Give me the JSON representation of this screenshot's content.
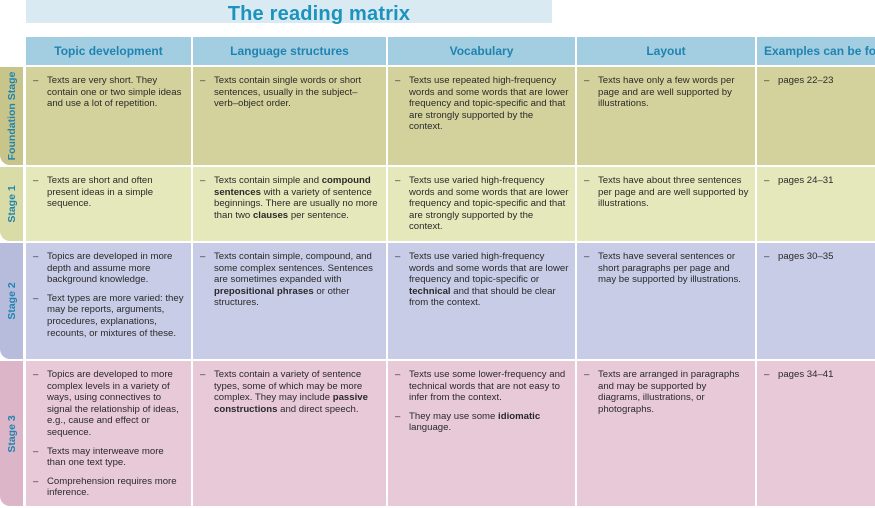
{
  "title": "The reading matrix",
  "columns": [
    "Topic development",
    "Language structures",
    "Vocabulary",
    "Layout",
    "Examples can be found"
  ],
  "colors": {
    "header_bg": "#a3cde0",
    "header_text": "#1f84b0",
    "title": "#1b93bd",
    "title_bar": "#d9eaf3"
  },
  "rows": [
    {
      "stage": "Foundation Stage",
      "bg": "#d4d29c",
      "label_bg": "#c8c58b",
      "cells": [
        [
          "Texts are very short.  They contain one or two simple ideas and use a lot of repetition."
        ],
        [
          "Texts contain single words or short sentences, usually in the subject–verb–object order."
        ],
        [
          "Texts use repeated high-frequency words and some words that are lower frequency and topic-specific and that are strongly supported by the context."
        ],
        [
          "Texts have only a few words per page and are well supported by illustrations."
        ],
        [
          "pages 22–23"
        ]
      ]
    },
    {
      "stage": "Stage 1",
      "bg": "#e5e8bb",
      "label_bg": "#d9dca7",
      "cells": [
        [
          "Texts are short and often present ideas in a simple sequence."
        ],
        [
          "Texts contain simple and <b>compound sentences</b> with a variety of sentence beginnings.  There are usually no more than two <b>clauses</b> per sentence."
        ],
        [
          "Texts use varied high-frequency words and some words that are lower frequency and topic-specific and that are strongly supported by the context."
        ],
        [
          "Texts have about three sentences per page and are well supported by illustrations."
        ],
        [
          "pages 24–31"
        ]
      ]
    },
    {
      "stage": "Stage 2",
      "bg": "#c8cce6",
      "label_bg": "#b7bcdd",
      "cells": [
        [
          "Topics are developed in more depth and assume more background knowledge.",
          "Text types are more varied: they may be reports, arguments, procedures, explanations, recounts, or mixtures of these."
        ],
        [
          "Texts contain simple, compound, and some complex sentences. Sentences are sometimes expanded with <b>prepositional phrases</b> or other structures."
        ],
        [
          "Texts use varied high-frequency words and some words that are lower frequency and topic-specific or <b>technical</b> and that should be clear from the context."
        ],
        [
          "Texts have several sentences or short paragraphs per page and may be supported by illustrations."
        ],
        [
          "pages 30–35"
        ]
      ]
    },
    {
      "stage": "Stage 3",
      "bg": "#e8c9d7",
      "label_bg": "#dcb5c8",
      "cells": [
        [
          "Topics are developed to more complex levels in a variety of ways, using connectives to signal the relationship of ideas, e.g., cause and effect or sequence.",
          "Texts may interweave more than one text type.",
          "Comprehension requires more inference."
        ],
        [
          "Texts contain a variety of sentence types, some of which may be more complex.  They may include <b>passive constructions</b> and direct speech."
        ],
        [
          "Texts use some lower-frequency and technical words that are not easy to infer from the context.",
          "They may use some <b>idiomatic</b> language."
        ],
        [
          "Texts are arranged in paragraphs and may be supported by diagrams, illustrations, or photographs."
        ],
        [
          "pages 34–41"
        ]
      ]
    }
  ]
}
